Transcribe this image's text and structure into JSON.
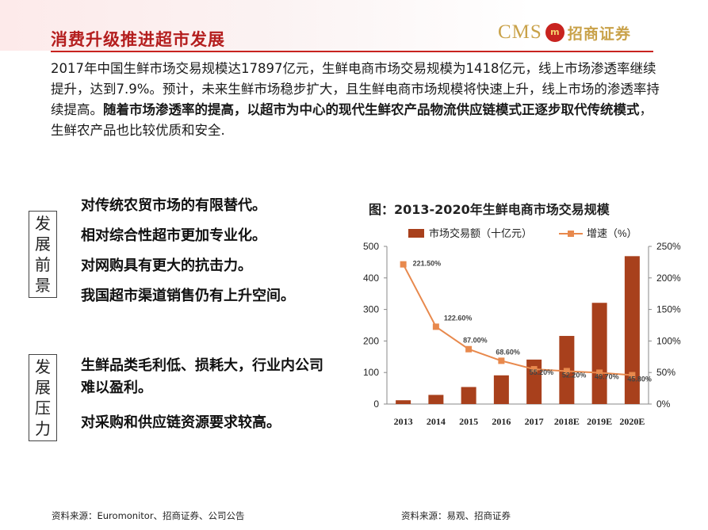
{
  "header": {
    "title": "消费升级推进超市发展",
    "logo_latin": "CMS",
    "logo_mark": "m",
    "logo_cn": "招商证券"
  },
  "intro": {
    "plain1": "2017年中国生鲜市场交易规模达17897亿元，生鲜电商市场交易规模为1418亿元，线上市场渗透率继续提升，达到7.9%。预计，未来生鲜市场稳步扩大，且生鲜电商市场规模将快速上升，线上市场的渗透率持续提高。",
    "bold": "随着市场渗透率的提高，以超市为中心的现代生鲜农产品物流供应链模式正逐步取代传统模式",
    "plain2": "，生鲜农产品也比较优质和安全."
  },
  "prospects": {
    "label": "发展前景",
    "items": [
      "对传统农贸市场的有限替代。",
      "相对综合性超市更加专业化。",
      "对网购具有更大的抗击力。",
      "我国超市渠道销售仍有上升空间。"
    ]
  },
  "pressures": {
    "label": "发展压力",
    "items": [
      "生鲜品类毛利低、损耗大，行业内公司难以盈利。",
      "对采购和供应链资源要求较高。"
    ]
  },
  "chart_title": "图：2013-2020年生鲜电商市场交易规模",
  "sources": {
    "left": "资料来源：Euromonitor、招商证券、公司公告",
    "right": "资料来源：易观、招商证券"
  },
  "chart_data": {
    "type": "bar",
    "categories": [
      "2013",
      "2014",
      "2015",
      "2016",
      "2017",
      "2018E",
      "2019E",
      "2020E"
    ],
    "series": [
      {
        "name": "市场交易额（十亿元）",
        "type": "bar",
        "axis": "left",
        "color": "#a8401c",
        "values": [
          12,
          29,
          54,
          91,
          141,
          216,
          321,
          469
        ]
      },
      {
        "name": "增速（%）",
        "type": "line",
        "axis": "right",
        "color": "#e8894d",
        "values": [
          221.5,
          122.6,
          87.0,
          68.6,
          55.2,
          52.2,
          49.7,
          45.8
        ],
        "labels": [
          "221.50%",
          "122.60%",
          "87.00%",
          "68.60%",
          "55.20%",
          "52.20%",
          "49.70%",
          "45.80%"
        ]
      }
    ],
    "ylim_left": [
      0,
      500
    ],
    "yticks_left": [
      "0",
      "100",
      "200",
      "300",
      "400",
      "500"
    ],
    "ylim_right": [
      0,
      250
    ],
    "yticks_right": [
      "0%",
      "50%",
      "100%",
      "150%",
      "200%",
      "250%"
    ],
    "legend": "top",
    "grid": false
  }
}
